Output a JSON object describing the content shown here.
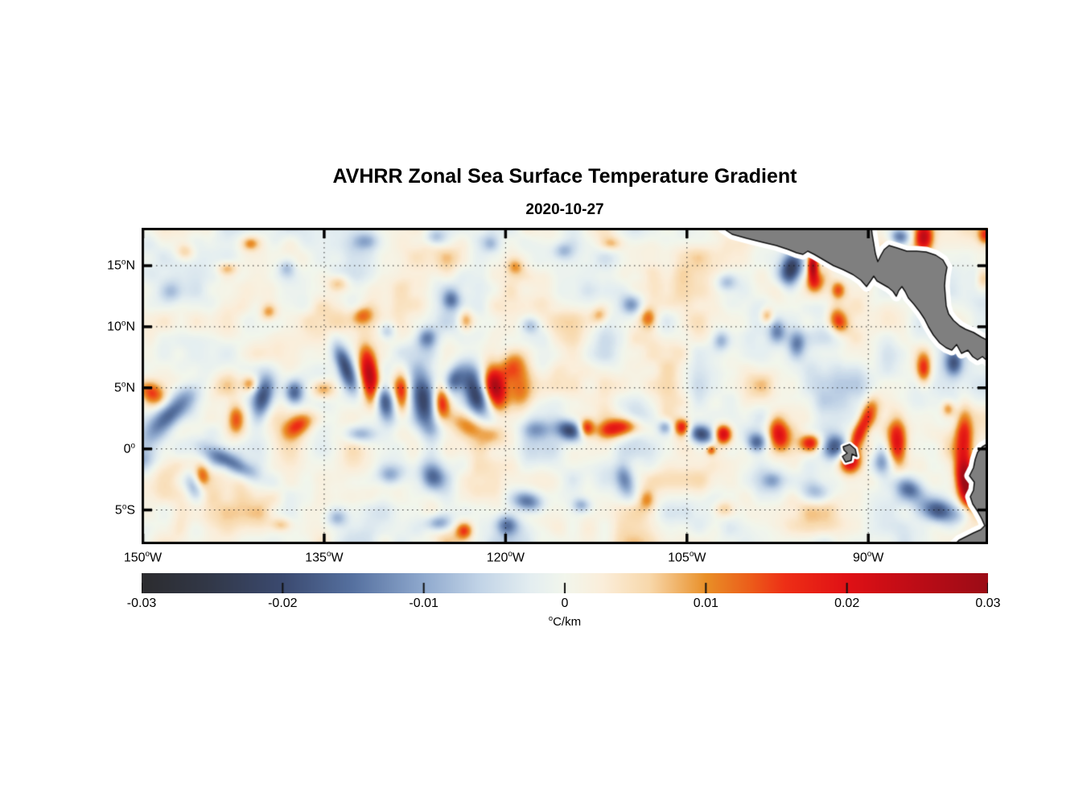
{
  "figure": {
    "title": "AVHRR Zonal Sea Surface Temperature Gradient",
    "subtitle": "2020-10-27"
  },
  "chart_data": {
    "type": "heatmap",
    "title": "AVHRR Zonal Sea Surface Temperature Gradient",
    "date": "2020-10-27",
    "variable": "zonal sea surface temperature gradient",
    "units": "°C/km",
    "value_range": [
      -0.03,
      0.03
    ],
    "grid": "dotted",
    "extent": {
      "lon_min": -150.1,
      "lon_max": -80.1,
      "lat_min": -7.8,
      "lat_max": 18.1
    },
    "x_axis": {
      "ticks": [
        {
          "text": "150",
          "suffix": "W",
          "lon": -150
        },
        {
          "text": "135",
          "suffix": "W",
          "lon": -135
        },
        {
          "text": "120",
          "suffix": "W",
          "lon": -120
        },
        {
          "text": "105",
          "suffix": "W",
          "lon": -105
        },
        {
          "text": "90",
          "suffix": "W",
          "lon": -90
        }
      ]
    },
    "y_axis": {
      "ticks": [
        {
          "text": "15",
          "suffix": "N",
          "lat": 15
        },
        {
          "text": "10",
          "suffix": "N",
          "lat": 10
        },
        {
          "text": "5",
          "suffix": "N",
          "lat": 5
        },
        {
          "text": "0",
          "suffix": "",
          "lat": 0
        },
        {
          "text": "5",
          "suffix": "S",
          "lat": -5
        }
      ]
    },
    "colorbar": {
      "orientation": "horizontal",
      "min": -0.03,
      "max": 0.03,
      "tick_labels": [
        "-0.03",
        "-0.02",
        "-0.01",
        "0",
        "0.01",
        "0.02",
        "0.03"
      ],
      "unit": "°C/km",
      "stops": [
        [
          0.0,
          "#2c2c2f"
        ],
        [
          0.08,
          "#323848"
        ],
        [
          0.167,
          "#3b4a70"
        ],
        [
          0.25,
          "#5671a0"
        ],
        [
          0.333,
          "#8fa9ce"
        ],
        [
          0.4,
          "#c2d4e7"
        ],
        [
          0.46,
          "#e4eef1"
        ],
        [
          0.5,
          "#f2f6ec"
        ],
        [
          0.545,
          "#fbeeda"
        ],
        [
          0.6,
          "#f8d8ab"
        ],
        [
          0.667,
          "#e98f27"
        ],
        [
          0.72,
          "#ec5c1a"
        ],
        [
          0.76,
          "#ee2f16"
        ],
        [
          0.833,
          "#e01115"
        ],
        [
          0.9,
          "#c30d16"
        ],
        [
          1.0,
          "#9b0c16"
        ]
      ]
    },
    "background_noise": {
      "bias": 0.0006,
      "octaves": [
        {
          "scale_deg": 5.5,
          "amp": 0.0025,
          "seed": 1
        },
        {
          "scale_deg": 2.6,
          "amp": 0.0042,
          "seed": 2
        },
        {
          "scale_deg": 1.3,
          "amp": 0.002,
          "seed": 3
        }
      ]
    },
    "features_legend": [
      "lon",
      "lat",
      "sigma_lon_deg",
      "sigma_lat_deg",
      "rotation_deg",
      "amplitude_C_per_km"
    ],
    "features": [
      [
        -133.3,
        6.8,
        0.5,
        1.3,
        20,
        -0.02
      ],
      [
        -131.2,
        5.8,
        0.55,
        1.6,
        10,
        0.027
      ],
      [
        -130.1,
        4.0,
        0.6,
        1.1,
        15,
        -0.019
      ],
      [
        -128.6,
        4.5,
        0.5,
        1.2,
        0,
        0.018
      ],
      [
        -126.7,
        3.8,
        0.75,
        1.7,
        10,
        -0.021
      ],
      [
        -125.3,
        3.8,
        0.5,
        1.0,
        0,
        0.019
      ],
      [
        -124.3,
        5.6,
        0.55,
        0.9,
        -20,
        -0.015
      ],
      [
        -122.5,
        4.7,
        0.65,
        1.5,
        15,
        -0.022
      ],
      [
        -120.9,
        4.9,
        0.6,
        1.3,
        10,
        0.025
      ],
      [
        -119.5,
        6.8,
        1.0,
        0.7,
        40,
        0.011
      ],
      [
        -122.8,
        1.8,
        1.8,
        0.7,
        -25,
        0.012
      ],
      [
        -129.6,
        -2.2,
        0.8,
        0.6,
        0,
        -0.013
      ],
      [
        -126.0,
        -2.1,
        0.7,
        1.0,
        20,
        -0.014
      ],
      [
        -132.0,
        1.2,
        0.9,
        0.5,
        0,
        -0.011
      ],
      [
        -118.9,
        4.8,
        0.8,
        1.4,
        0,
        0.009
      ],
      [
        -117.4,
        1.6,
        0.8,
        0.6,
        0,
        -0.009
      ],
      [
        -147.8,
        2.8,
        2.4,
        0.75,
        45,
        -0.021
      ],
      [
        -149.3,
        4.6,
        0.9,
        0.6,
        -30,
        0.013
      ],
      [
        -142.8,
        -1.1,
        1.9,
        0.55,
        -28,
        -0.017
      ],
      [
        -140.1,
        4.1,
        0.6,
        1.4,
        -15,
        -0.017
      ],
      [
        -142.3,
        2.4,
        0.5,
        0.9,
        0,
        0.013
      ],
      [
        -141.1,
        5.3,
        0.5,
        0.5,
        0,
        0.012
      ],
      [
        -137.5,
        4.6,
        0.55,
        0.75,
        0,
        -0.018
      ],
      [
        -137.0,
        2.0,
        1.0,
        0.6,
        30,
        0.013
      ],
      [
        -145.1,
        -2.2,
        0.45,
        0.7,
        0,
        0.011
      ],
      [
        -145.8,
        -3.0,
        0.5,
        0.8,
        20,
        -0.011
      ],
      [
        -135.1,
        4.9,
        0.7,
        0.6,
        0,
        0.012
      ],
      [
        -150.0,
        -1.0,
        0.8,
        0.8,
        0,
        -0.012
      ],
      [
        -114.7,
        1.5,
        0.8,
        0.6,
        -20,
        -0.02
      ],
      [
        -113.3,
        1.7,
        0.45,
        0.55,
        0,
        0.018
      ],
      [
        -111.3,
        1.6,
        0.8,
        0.5,
        10,
        0.013
      ],
      [
        -109.8,
        1.8,
        0.9,
        0.55,
        -10,
        0.014
      ],
      [
        -106.8,
        1.8,
        0.45,
        0.45,
        0,
        -0.012
      ],
      [
        -105.4,
        1.8,
        0.45,
        0.5,
        0,
        0.016
      ],
      [
        -103.8,
        1.2,
        0.75,
        0.55,
        -15,
        -0.02
      ],
      [
        -102.0,
        1.2,
        0.5,
        0.55,
        0,
        0.023
      ],
      [
        -99.2,
        0.5,
        0.6,
        0.6,
        -20,
        -0.018
      ],
      [
        -110.1,
        -2.6,
        0.55,
        1.1,
        15,
        -0.013
      ],
      [
        -118.2,
        -4.3,
        0.9,
        0.6,
        -15,
        -0.016
      ],
      [
        -113.7,
        -4.6,
        0.55,
        0.45,
        0,
        -0.01
      ],
      [
        -108.3,
        -4.1,
        0.5,
        0.6,
        0,
        0.009
      ],
      [
        -103.0,
        -0.1,
        0.28,
        0.28,
        0,
        0.012
      ],
      [
        -97.4,
        1.2,
        0.6,
        0.9,
        15,
        0.02
      ],
      [
        -94.8,
        0.5,
        0.6,
        0.5,
        0,
        0.018
      ],
      [
        -92.7,
        0.2,
        0.7,
        0.8,
        -20,
        -0.018
      ],
      [
        -91.5,
        -1.0,
        0.6,
        0.7,
        0,
        0.018
      ],
      [
        -90.8,
        1.2,
        0.4,
        1.3,
        -20,
        0.015
      ],
      [
        -89.9,
        2.8,
        0.5,
        1.0,
        -15,
        0.012
      ],
      [
        -87.6,
        0.5,
        0.55,
        1.3,
        0,
        0.021
      ],
      [
        -88.9,
        -1.0,
        0.5,
        0.8,
        0,
        -0.009
      ],
      [
        -86.6,
        -3.3,
        0.8,
        0.6,
        -20,
        -0.014
      ],
      [
        -82.1,
        1.2,
        0.5,
        1.6,
        0,
        0.015
      ],
      [
        -81.9,
        -2.8,
        0.55,
        1.4,
        10,
        0.029
      ],
      [
        -83.9,
        -5.1,
        1.3,
        0.7,
        -15,
        -0.02
      ],
      [
        -83.4,
        3.3,
        0.4,
        0.5,
        0,
        0.012
      ],
      [
        -85.4,
        6.6,
        0.45,
        0.9,
        0,
        0.016
      ],
      [
        -82.9,
        7.0,
        0.5,
        0.7,
        0,
        -0.014
      ],
      [
        -92.5,
        10.5,
        0.55,
        0.8,
        20,
        0.016
      ],
      [
        -96.4,
        14.6,
        0.6,
        0.9,
        -15,
        -0.022
      ],
      [
        -94.6,
        15.0,
        0.3,
        0.75,
        0,
        0.028
      ],
      [
        -94.4,
        13.6,
        0.55,
        0.6,
        0,
        0.013
      ],
      [
        -92.5,
        13.0,
        0.4,
        0.5,
        0,
        0.011
      ],
      [
        -97.5,
        9.7,
        0.5,
        0.7,
        0,
        -0.012
      ],
      [
        -95.9,
        8.6,
        0.5,
        0.8,
        0,
        -0.012
      ],
      [
        -98.4,
        10.9,
        0.4,
        0.5,
        0,
        0.011
      ],
      [
        -87.4,
        17.4,
        0.6,
        0.5,
        0,
        -0.015
      ],
      [
        -85.4,
        17.4,
        0.5,
        0.8,
        0,
        0.022
      ],
      [
        -80.5,
        14.0,
        0.4,
        0.6,
        0,
        0.01
      ],
      [
        -80.3,
        17.5,
        0.4,
        0.5,
        0,
        0.013
      ],
      [
        -101.7,
        13.6,
        0.6,
        0.5,
        0,
        -0.008
      ],
      [
        -102.2,
        8.9,
        0.5,
        0.6,
        0,
        -0.01
      ],
      [
        -109.6,
        11.8,
        0.6,
        0.6,
        0,
        -0.012
      ],
      [
        -108.2,
        10.7,
        0.5,
        0.6,
        0,
        0.011
      ],
      [
        -112.2,
        10.9,
        0.5,
        0.5,
        0,
        0.009
      ],
      [
        -117.9,
        10.1,
        0.6,
        0.5,
        0,
        -0.009
      ],
      [
        -115.2,
        16.2,
        0.6,
        0.5,
        0,
        -0.008
      ],
      [
        -111.2,
        16.8,
        0.6,
        0.4,
        0,
        0.007
      ],
      [
        -119.2,
        14.9,
        0.5,
        0.5,
        0,
        0.008
      ],
      [
        -124.5,
        12.2,
        0.5,
        0.6,
        0,
        -0.012
      ],
      [
        -123.3,
        10.5,
        0.45,
        0.6,
        0,
        0.012
      ],
      [
        -126.5,
        9.1,
        0.6,
        0.6,
        20,
        -0.013
      ],
      [
        -131.5,
        17.0,
        0.7,
        0.5,
        0,
        -0.009
      ],
      [
        -125.8,
        17.3,
        0.6,
        0.5,
        0,
        -0.009
      ],
      [
        -121.2,
        16.8,
        0.5,
        0.5,
        0,
        -0.008
      ],
      [
        -141.1,
        16.8,
        0.5,
        0.4,
        0,
        0.009
      ],
      [
        -138.1,
        14.8,
        0.5,
        0.5,
        0,
        -0.008
      ],
      [
        -146.5,
        16.1,
        0.6,
        0.5,
        0,
        0.008
      ],
      [
        -143.0,
        14.8,
        0.6,
        0.4,
        0,
        0.008
      ],
      [
        -133.8,
        13.6,
        0.6,
        0.5,
        0,
        0.008
      ],
      [
        -139.6,
        11.2,
        0.5,
        0.5,
        0,
        0.01
      ],
      [
        -147.8,
        12.9,
        0.6,
        0.6,
        0,
        -0.007
      ],
      [
        -131.8,
        10.9,
        0.6,
        0.5,
        0,
        0.009
      ],
      [
        -129.8,
        9.6,
        0.5,
        0.5,
        0,
        -0.009
      ],
      [
        -125.5,
        -6.1,
        0.8,
        0.5,
        0,
        -0.013
      ],
      [
        -123.4,
        -6.7,
        0.5,
        0.5,
        0,
        0.014
      ],
      [
        -119.9,
        -6.2,
        0.7,
        0.6,
        0,
        -0.014
      ],
      [
        -133.9,
        -5.7,
        0.6,
        0.5,
        0,
        -0.008
      ],
      [
        -138.5,
        -6.2,
        0.6,
        0.4,
        0,
        0.007
      ],
      [
        -101.9,
        -4.9,
        0.6,
        0.5,
        0,
        0.007
      ],
      [
        -94.5,
        -3.6,
        0.8,
        0.6,
        0,
        -0.009
      ],
      [
        -97.9,
        -2.6,
        0.6,
        0.5,
        0,
        -0.008
      ]
    ],
    "land": {
      "fill": "#7f7f7f",
      "outline": "#111111",
      "coast_buffer_color": "#ffffff",
      "coast_buffer_width": 13,
      "coords": "plot_px",
      "polygons": {
        "central_america": [
          [
            722,
            0
          ],
          [
            734,
            8
          ],
          [
            752,
            13
          ],
          [
            772,
            18
          ],
          [
            789,
            22
          ],
          [
            804,
            27
          ],
          [
            814,
            31
          ],
          [
            822,
            33
          ],
          [
            828,
            29
          ],
          [
            836,
            33
          ],
          [
            848,
            40
          ],
          [
            860,
            47
          ],
          [
            872,
            52
          ],
          [
            884,
            58
          ],
          [
            894,
            65
          ],
          [
            901,
            73
          ],
          [
            906,
            66
          ],
          [
            910,
            60
          ],
          [
            914,
            66
          ],
          [
            921,
            70
          ],
          [
            928,
            74
          ],
          [
            934,
            79
          ],
          [
            938,
            85
          ],
          [
            941,
            78
          ],
          [
            945,
            73
          ],
          [
            949,
            79
          ],
          [
            953,
            87
          ],
          [
            960,
            95
          ],
          [
            967,
            104
          ],
          [
            973,
            113
          ],
          [
            978,
            123
          ],
          [
            984,
            133
          ],
          [
            992,
            143
          ],
          [
            1000,
            149
          ],
          [
            1007,
            152
          ],
          [
            1013,
            145
          ],
          [
            1019,
            156
          ],
          [
            1027,
            152
          ],
          [
            1033,
            160
          ],
          [
            1039,
            164
          ],
          [
            1045,
            160
          ],
          [
            1052,
            166
          ],
          [
            1052,
            140
          ],
          [
            1044,
            136
          ],
          [
            1034,
            130
          ],
          [
            1024,
            126
          ],
          [
            1017,
            122
          ],
          [
            1009,
            115
          ],
          [
            1003,
            107
          ],
          [
            1000,
            97
          ],
          [
            999,
            85
          ],
          [
            998,
            72
          ],
          [
            999,
            60
          ],
          [
            1001,
            49
          ],
          [
            996,
            40
          ],
          [
            987,
            34
          ],
          [
            975,
            30
          ],
          [
            963,
            29
          ],
          [
            951,
            29
          ],
          [
            939,
            25
          ],
          [
            929,
            22
          ],
          [
            923,
            27
          ],
          [
            919,
            34
          ],
          [
            915,
            42
          ],
          [
            912,
            32
          ],
          [
            910,
            20
          ],
          [
            908,
            8
          ],
          [
            907,
            0
          ]
        ],
        "south_america": [
          [
            1052,
            268
          ],
          [
            1045,
            272
          ],
          [
            1039,
            279
          ],
          [
            1036,
            288
          ],
          [
            1034,
            298
          ],
          [
            1029,
            308
          ],
          [
            1035,
            316
          ],
          [
            1034,
            326
          ],
          [
            1030,
            334
          ],
          [
            1033,
            343
          ],
          [
            1039,
            352
          ],
          [
            1044,
            361
          ],
          [
            1048,
            370
          ],
          [
            1043,
            375
          ],
          [
            1034,
            379
          ],
          [
            1024,
            384
          ],
          [
            1016,
            388
          ],
          [
            1011,
            393
          ],
          [
            1052,
            393
          ]
        ],
        "galapagos": [
          [
            872,
            272
          ],
          [
            880,
            269
          ],
          [
            887,
            275
          ],
          [
            889,
            284
          ],
          [
            883,
            281
          ],
          [
            882,
            289
          ],
          [
            875,
            291
          ],
          [
            871,
            284
          ],
          [
            877,
            280
          ],
          [
            873,
            276
          ]
        ]
      }
    }
  }
}
